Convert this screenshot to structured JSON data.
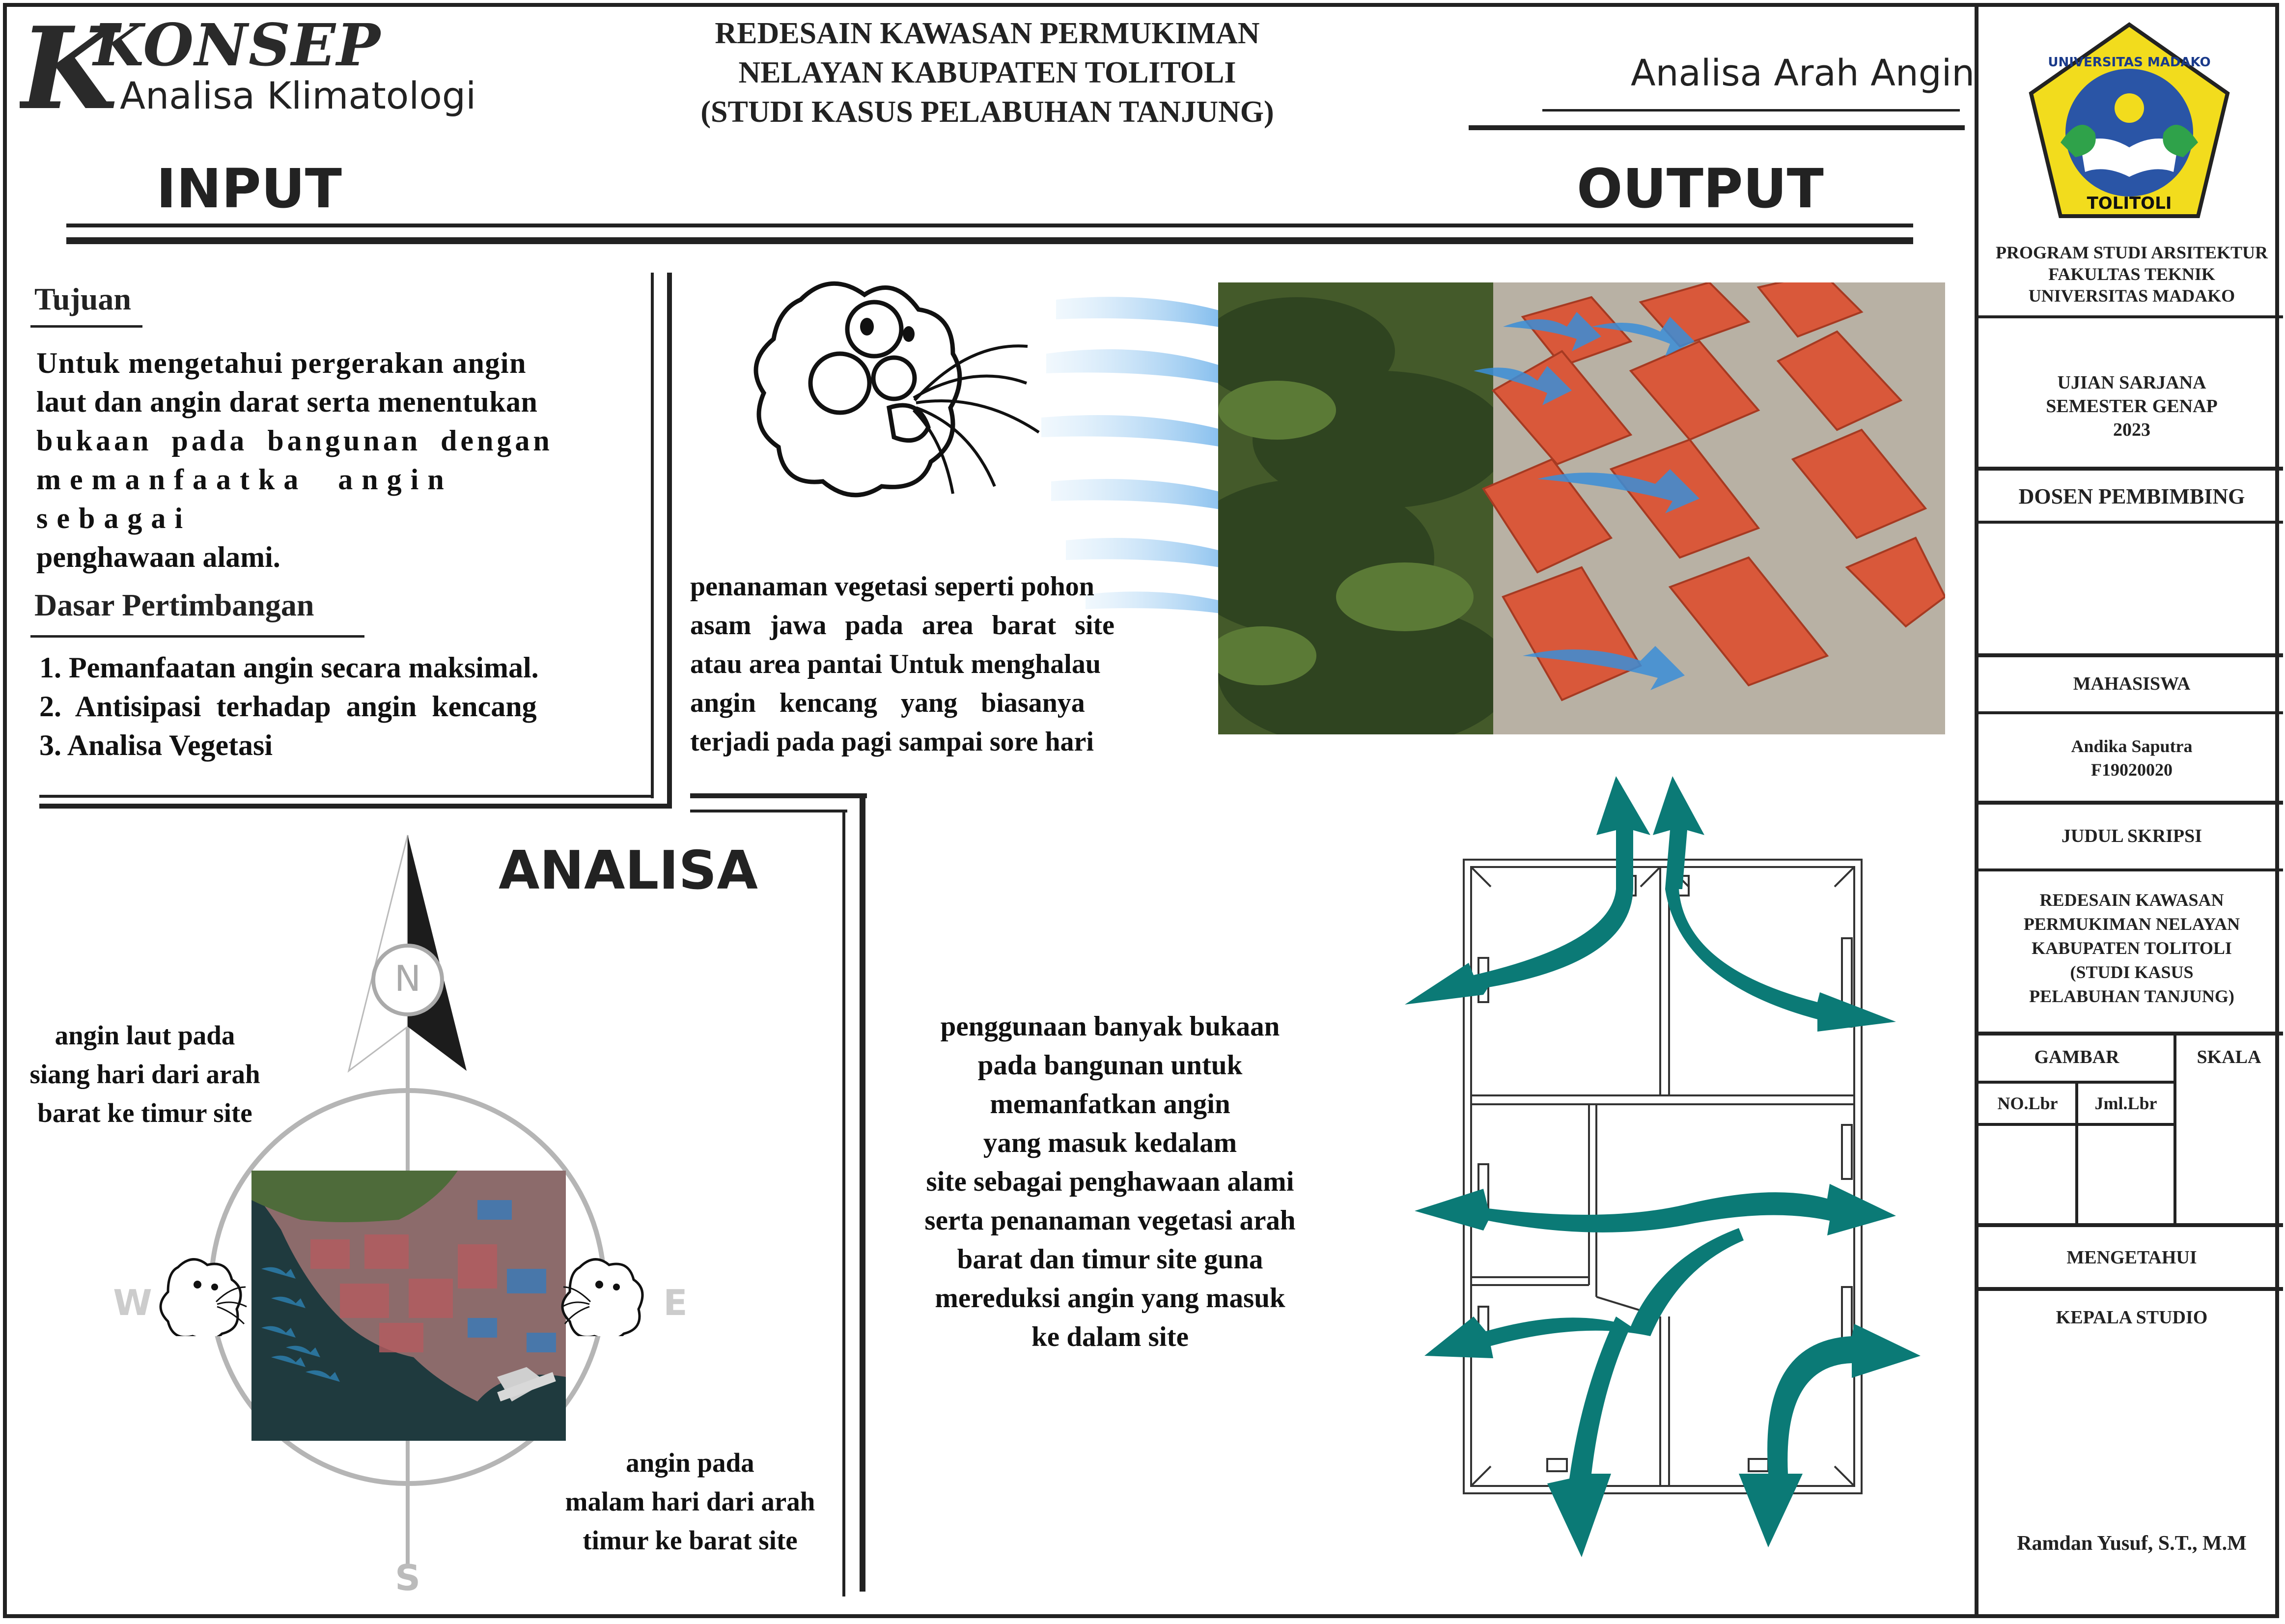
{
  "header": {
    "logo_big": "KONSEP",
    "logo_sub": "Analisa Klimatologi",
    "title_lines": [
      "REDESAIN KAWASAN PERMUKIMAN",
      "NELAYAN KABUPATEN TOLITOLI",
      "(STUDI KASUS PELABUHAN TANJUNG)"
    ],
    "topic": "Analisa Arah Angin",
    "input_label": "INPUT",
    "output_label": "OUTPUT"
  },
  "tujuan": {
    "heading": "Tujuan",
    "lines": [
      "Untuk mengetahui pergerakan angin",
      "laut dan angin darat serta menentukan",
      "bukaan pada bangunan dengan",
      "memanfaatka angin sebagai",
      "penghawaan alami."
    ]
  },
  "dasar": {
    "heading": "Dasar Pertimbangan",
    "items": [
      "1. Pemanfaatan angin secara maksimal.",
      "2.  Antisipasi terhadap angin kencang",
      "3. Analisa Vegetasi"
    ]
  },
  "output_text_1": [
    "penanaman vegetasi seperti pohon",
    "asam jawa pada area barat site",
    "atau area pantai Untuk menghalau",
    "angin kencang yang biasanya",
    "terjadi pada pagi sampai sore hari"
  ],
  "analisa": {
    "heading": "ANALISA",
    "compass": {
      "n": "N",
      "s": "S",
      "w": "W",
      "e": "E"
    },
    "left_note": [
      "angin laut pada",
      "siang hari dari arah",
      "barat ke timur site"
    ],
    "right_note": [
      "angin pada",
      "malam hari dari arah",
      "timur ke barat site"
    ]
  },
  "output_text_2": [
    "penggunaan banyak bukaan",
    "pada bangunan untuk",
    "memanfatkan angin",
    "yang  masuk kedalam",
    "site sebagai penghawaan alami",
    "serta penanaman vegetasi arah",
    "barat dan timur site guna",
    "mereduksi angin  yang masuk",
    "ke dalam site"
  ],
  "title_block": {
    "university_logo": {
      "top": "UNIVERSITAS MADAKO",
      "bottom": "TOLITOLI"
    },
    "program": [
      "PROGRAM STUDI ARSITEKTUR",
      "FAKULTAS TEKNIK",
      "UNIVERSITAS MADAKO"
    ],
    "exam": [
      "UJIAN SARJANA",
      "SEMESTER GENAP",
      "2023"
    ],
    "dosen_label": "DOSEN PEMBIMBING",
    "mahasiswa_label": "MAHASISWA",
    "student_name": "Andika Saputra",
    "student_id": "F19020020",
    "judul_label": "JUDUL SKRIPSI",
    "judul_lines": [
      "REDESAIN KAWASAN",
      "PERMUKIMAN NELAYAN",
      "KABUPATEN TOLITOLI",
      "(STUDI KASUS",
      "PELABUHAN TANJUNG)"
    ],
    "gambar_label": "GAMBAR",
    "skala_label": "SKALA",
    "no_lbr": "NO.Lbr",
    "jml_lbr": "Jml.Lbr",
    "mengetahui_label": "MENGETAHUI",
    "kepala_label": "KEPALA STUDIO",
    "kepala_name": "Ramdan Yusuf, S.T., M.M"
  },
  "colors": {
    "teal_arrow": "#0b7a76",
    "wind_blue": "#3b9be0",
    "roof": "#e06a45",
    "logo_yellow": "#f2dc1d",
    "logo_blue": "#2a55a6"
  }
}
